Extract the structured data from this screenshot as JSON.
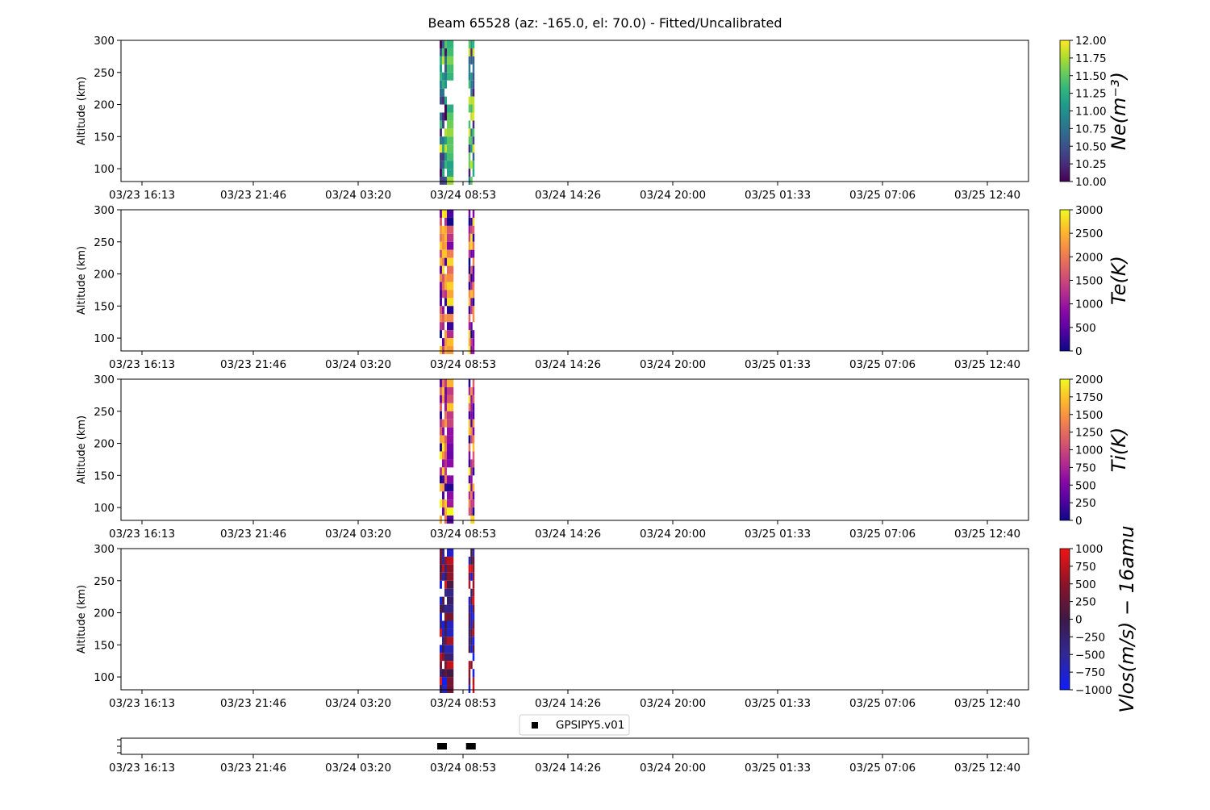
{
  "title": "Beam 65528 (az: -165.0, el: 70.0) - Fitted/Uncalibrated",
  "chart_data": [
    {
      "type": "heatmap",
      "panel": "Ne",
      "ylabel": "Altitude (km)",
      "ylim": [
        80,
        300
      ],
      "yticks": [
        "100",
        "150",
        "200",
        "250",
        "300"
      ],
      "xticks": [
        "03/23 16:13",
        "03/23 21:46",
        "03/24 03:20",
        "03/24 08:53",
        "03/24 14:26",
        "03/24 20:00",
        "03/25 01:33",
        "03/25 07:06",
        "03/25 12:40"
      ],
      "colorbar": {
        "label": "Ne(m⁻³)",
        "range": [
          10,
          12
        ],
        "colormap": "viridis",
        "ticks": [
          "10.00",
          "10.25",
          "10.50",
          "10.75",
          "11.00",
          "11.25",
          "11.50",
          "11.75",
          "12.00"
        ]
      },
      "data_times": [
        "03/24 07:52",
        "03/24 08:36",
        "03/24 09:23",
        "03/24 09:40"
      ]
    },
    {
      "type": "heatmap",
      "panel": "Te",
      "ylabel": "Altitude (km)",
      "ylim": [
        80,
        300
      ],
      "yticks": [
        "100",
        "150",
        "200",
        "250",
        "300"
      ],
      "xticks": [
        "03/23 16:13",
        "03/23 21:46",
        "03/24 03:20",
        "03/24 08:53",
        "03/24 14:26",
        "03/24 20:00",
        "03/25 01:33",
        "03/25 07:06",
        "03/25 12:40"
      ],
      "colorbar": {
        "label": "Te(K)",
        "range": [
          0,
          3000
        ],
        "colormap": "plasma",
        "ticks": [
          "0",
          "500",
          "1000",
          "1500",
          "2000",
          "2500",
          "3000"
        ]
      }
    },
    {
      "type": "heatmap",
      "panel": "Ti",
      "ylabel": "Altitude (km)",
      "ylim": [
        80,
        300
      ],
      "yticks": [
        "100",
        "150",
        "200",
        "250",
        "300"
      ],
      "xticks": [
        "03/23 16:13",
        "03/23 21:46",
        "03/24 03:20",
        "03/24 08:53",
        "03/24 14:26",
        "03/24 20:00",
        "03/25 01:33",
        "03/25 07:06",
        "03/25 12:40"
      ],
      "colorbar": {
        "label": "Ti(K)",
        "range": [
          0,
          2000
        ],
        "colormap": "plasma",
        "ticks": [
          "0",
          "250",
          "500",
          "750",
          "1000",
          "1250",
          "1500",
          "1750",
          "2000"
        ]
      }
    },
    {
      "type": "heatmap",
      "panel": "Vlos",
      "ylabel": "Altitude (km)",
      "ylim": [
        80,
        300
      ],
      "yticks": [
        "100",
        "150",
        "200",
        "250",
        "300"
      ],
      "xticks": [
        "03/23 16:13",
        "03/23 21:46",
        "03/24 03:20",
        "03/24 08:53",
        "03/24 14:26",
        "03/24 20:00",
        "03/25 01:33",
        "03/25 07:06",
        "03/25 12:40"
      ],
      "colorbar": {
        "label": "Vlos(m/s) − 16amu",
        "range": [
          -1000,
          1000
        ],
        "colormap": "blue-red",
        "ticks": [
          "−1000",
          "−750",
          "−500",
          "−250",
          "0",
          "250",
          "500",
          "750",
          "1000"
        ]
      }
    },
    {
      "type": "scatter",
      "panel": "instrument",
      "legend": [
        "GPSIPY5.v01"
      ],
      "legend_loc": "upper center",
      "xticks": [
        "03/23 16:13",
        "03/23 21:46",
        "03/24 03:20",
        "03/24 08:53",
        "03/24 14:26",
        "03/24 20:00",
        "03/25 01:33",
        "03/25 07:06",
        "03/25 12:40"
      ],
      "series": [
        {
          "name": "GPSIPY5.v01",
          "x": [
            "03/24 07:52",
            "03/24 08:12",
            "03/24 09:23",
            "03/24 09:40"
          ],
          "marker": "square",
          "color": "#000000"
        }
      ]
    }
  ]
}
